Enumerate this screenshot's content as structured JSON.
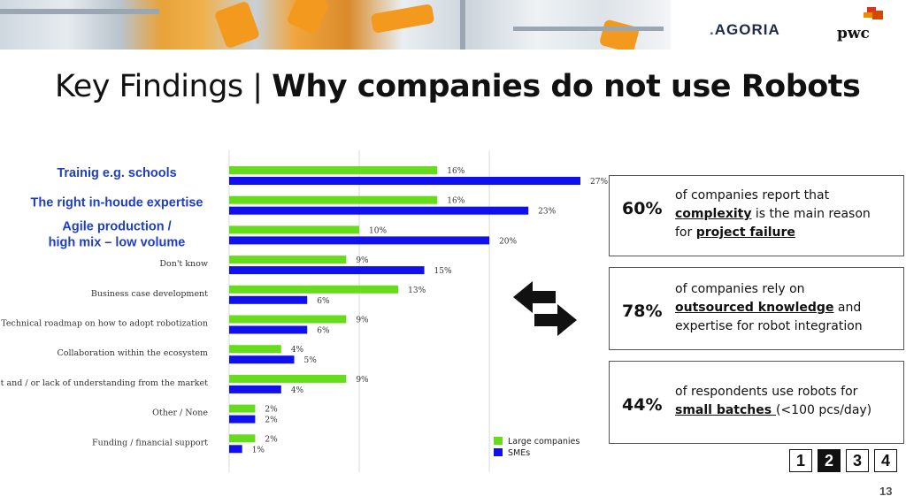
{
  "header": {
    "logo_agoria_dot": ".",
    "logo_agoria": "AGORIA",
    "logo_pwc": "pwc"
  },
  "title": {
    "prefix": "Key Findings",
    "separator": "|",
    "main": "Why companies do not use Robots"
  },
  "colors": {
    "large": "#66dd1a",
    "sme": "#1010ee",
    "highlight_label": "#1f3fbf",
    "accent_orange": "#f39a1e"
  },
  "chart_data": {
    "type": "bar",
    "orientation": "horizontal",
    "categories": [
      "Trainig e.g. schools",
      "The right in-houde expertise",
      "Agile production / high mix – low volume",
      "Don't know",
      "Business case development",
      "Technical roadmap on how to adopt robotization",
      "Collaboration within the ecosystem",
      "Trust and / or lack of understanding from the market",
      "Other / None",
      "Funding / financial support"
    ],
    "highlighted": [
      true,
      true,
      true,
      false,
      false,
      false,
      false,
      false,
      false,
      false
    ],
    "series": [
      {
        "name": "Large companies",
        "values": [
          16,
          16,
          10,
          9,
          13,
          9,
          4,
          9,
          2,
          2
        ]
      },
      {
        "name": "SMEs",
        "values": [
          27,
          23,
          20,
          15,
          6,
          6,
          5,
          4,
          2,
          1
        ]
      }
    ],
    "value_suffix": "%",
    "xlim": [
      0,
      27
    ],
    "grid": true,
    "legend_position": "bottom-right"
  },
  "callouts": [
    {
      "pct": "60%",
      "t1": "of companies report that",
      "u1": "complexity",
      "t2": " is the main reason",
      "t3": "for ",
      "u2": "project failure",
      "t4": ""
    },
    {
      "pct": "78%",
      "t1": "of companies rely on",
      "u1": "outsourced knowledge",
      "t2": " and",
      "t3": "expertise for robot integration",
      "u2": "",
      "t4": ""
    },
    {
      "pct": "44%",
      "t1": "of respondents use robots for",
      "u1": "small batches ",
      "t2": "(<100 pcs/day)",
      "t3": "",
      "u2": "",
      "t4": ""
    }
  ],
  "pager": {
    "items": [
      "1",
      "2",
      "3",
      "4"
    ],
    "active": "2"
  },
  "page_number": "13"
}
